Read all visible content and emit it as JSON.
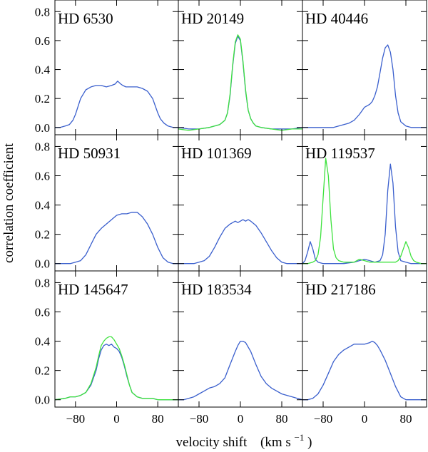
{
  "chart_data": {
    "type": "line",
    "xlabel": "velocity shift",
    "xlabel_unit_prefix": "(km s",
    "xlabel_unit_exp": "−1",
    "xlabel_unit_suffix": ")",
    "ylabel": "correlation coefficient",
    "xlim": [
      -120,
      120
    ],
    "ylim": [
      -0.05,
      0.88
    ],
    "xticks": [
      -80,
      0,
      80
    ],
    "xtick_labels": [
      "−80",
      "0",
      "80"
    ],
    "yticks": [
      0.0,
      0.2,
      0.4,
      0.6,
      0.8
    ],
    "ytick_labels": [
      "0.0",
      "0.2",
      "0.4",
      "0.6",
      "0.8"
    ],
    "series_colors": {
      "blue": "#3a5fcd",
      "green": "#3ee23e"
    },
    "panels": [
      {
        "title": "HD 6530",
        "series": [
          {
            "color": "blue",
            "x": [
              -120,
              -110,
              -100,
              -92,
              -85,
              -80,
              -70,
              -60,
              -50,
              -40,
              -30,
              -20,
              -10,
              -3,
              2,
              8,
              12,
              18,
              24,
              30,
              40,
              50,
              60,
              70,
              80,
              85,
              92,
              100,
              110,
              120
            ],
            "y": [
              0.0,
              0.0,
              0.01,
              0.02,
              0.05,
              0.09,
              0.2,
              0.26,
              0.28,
              0.29,
              0.29,
              0.28,
              0.29,
              0.3,
              0.32,
              0.3,
              0.29,
              0.28,
              0.28,
              0.28,
              0.28,
              0.27,
              0.25,
              0.2,
              0.1,
              0.06,
              0.03,
              0.01,
              0.0,
              0.0
            ]
          }
        ]
      },
      {
        "title": "HD 20149",
        "series": [
          {
            "color": "blue",
            "x": [
              -120,
              -100,
              -80,
              -60,
              -40,
              -30,
              -25,
              -20,
              -15,
              -10,
              -5,
              0,
              5,
              10,
              15,
              20,
              25,
              30,
              40,
              60,
              80,
              100,
              120
            ],
            "y": [
              0.0,
              -0.01,
              -0.01,
              0.0,
              0.02,
              0.05,
              0.1,
              0.22,
              0.42,
              0.58,
              0.63,
              0.6,
              0.45,
              0.25,
              0.12,
              0.06,
              0.03,
              0.01,
              0.0,
              -0.01,
              -0.01,
              -0.01,
              0.0
            ]
          },
          {
            "color": "green",
            "x": [
              -120,
              -100,
              -80,
              -60,
              -40,
              -30,
              -25,
              -20,
              -15,
              -10,
              -5,
              0,
              5,
              10,
              15,
              20,
              25,
              30,
              40,
              60,
              80,
              100,
              120
            ],
            "y": [
              -0.01,
              -0.02,
              -0.01,
              0.0,
              0.02,
              0.05,
              0.1,
              0.23,
              0.43,
              0.59,
              0.64,
              0.61,
              0.46,
              0.26,
              0.12,
              0.06,
              0.03,
              0.01,
              0.0,
              -0.01,
              -0.02,
              -0.01,
              -0.01
            ]
          }
        ]
      },
      {
        "title": "HD 40446",
        "series": [
          {
            "color": "blue",
            "x": [
              -120,
              -100,
              -80,
              -60,
              -40,
              -30,
              -20,
              -10,
              0,
              5,
              10,
              15,
              20,
              25,
              30,
              35,
              40,
              45,
              50,
              55,
              60,
              65,
              70,
              80,
              90,
              100,
              120
            ],
            "y": [
              0.0,
              0.0,
              0.0,
              0.0,
              0.02,
              0.03,
              0.05,
              0.09,
              0.14,
              0.15,
              0.16,
              0.18,
              0.22,
              0.28,
              0.38,
              0.48,
              0.55,
              0.57,
              0.52,
              0.4,
              0.22,
              0.1,
              0.04,
              0.01,
              0.0,
              0.0,
              0.0
            ]
          }
        ]
      },
      {
        "title": "HD 50931",
        "series": [
          {
            "color": "blue",
            "x": [
              -120,
              -100,
              -90,
              -80,
              -70,
              -60,
              -50,
              -40,
              -30,
              -20,
              -10,
              0,
              10,
              20,
              30,
              40,
              50,
              60,
              70,
              80,
              90,
              100,
              110,
              120
            ],
            "y": [
              0.0,
              0.0,
              0.0,
              0.01,
              0.02,
              0.06,
              0.13,
              0.2,
              0.24,
              0.27,
              0.3,
              0.33,
              0.34,
              0.34,
              0.35,
              0.35,
              0.32,
              0.27,
              0.2,
              0.11,
              0.04,
              0.01,
              0.0,
              0.0
            ]
          }
        ]
      },
      {
        "title": "HD 101369",
        "series": [
          {
            "color": "blue",
            "x": [
              -120,
              -100,
              -90,
              -80,
              -70,
              -60,
              -50,
              -40,
              -30,
              -20,
              -10,
              -5,
              0,
              5,
              10,
              15,
              20,
              30,
              40,
              50,
              60,
              70,
              80,
              90,
              100,
              120
            ],
            "y": [
              0.0,
              0.0,
              0.0,
              0.01,
              0.02,
              0.05,
              0.11,
              0.18,
              0.24,
              0.27,
              0.29,
              0.28,
              0.29,
              0.3,
              0.29,
              0.3,
              0.29,
              0.26,
              0.21,
              0.15,
              0.09,
              0.04,
              0.01,
              0.0,
              0.0,
              0.0
            ]
          }
        ]
      },
      {
        "title": "HD 119537",
        "series": [
          {
            "color": "blue",
            "x": [
              -120,
              -115,
              -110,
              -105,
              -100,
              -95,
              -90,
              -80,
              -60,
              -40,
              -20,
              -10,
              0,
              10,
              20,
              30,
              35,
              40,
              45,
              50,
              55,
              60,
              65,
              70,
              80,
              90,
              100,
              110,
              120
            ],
            "y": [
              0.0,
              0.02,
              0.08,
              0.15,
              0.1,
              0.03,
              0.01,
              0.0,
              0.0,
              0.0,
              0.01,
              0.02,
              0.03,
              0.02,
              0.01,
              0.02,
              0.06,
              0.2,
              0.5,
              0.68,
              0.55,
              0.25,
              0.08,
              0.02,
              0.01,
              0.0,
              0.0,
              0.0,
              0.0
            ]
          },
          {
            "color": "green",
            "x": [
              -120,
              -110,
              -100,
              -95,
              -90,
              -85,
              -80,
              -75,
              -70,
              -65,
              -60,
              -55,
              -50,
              -40,
              -20,
              -10,
              0,
              10,
              20,
              40,
              60,
              65,
              70,
              75,
              80,
              85,
              90,
              95,
              100,
              110,
              120
            ],
            "y": [
              0.0,
              0.0,
              0.01,
              0.02,
              0.06,
              0.18,
              0.45,
              0.72,
              0.6,
              0.3,
              0.1,
              0.04,
              0.02,
              0.01,
              0.01,
              0.03,
              0.02,
              0.01,
              0.01,
              0.01,
              0.01,
              0.02,
              0.05,
              0.1,
              0.15,
              0.11,
              0.05,
              0.02,
              0.01,
              0.0,
              0.0
            ]
          }
        ]
      },
      {
        "title": "HD 145647",
        "series": [
          {
            "color": "blue",
            "x": [
              -120,
              -100,
              -90,
              -80,
              -70,
              -60,
              -50,
              -40,
              -35,
              -30,
              -25,
              -20,
              -15,
              -10,
              -5,
              0,
              5,
              10,
              15,
              20,
              25,
              30,
              40,
              50,
              60,
              70,
              80,
              100,
              120
            ],
            "y": [
              0.0,
              0.01,
              0.02,
              0.02,
              0.03,
              0.05,
              0.1,
              0.2,
              0.28,
              0.34,
              0.37,
              0.38,
              0.37,
              0.38,
              0.36,
              0.35,
              0.33,
              0.29,
              0.23,
              0.16,
              0.1,
              0.05,
              0.02,
              0.01,
              0.01,
              0.01,
              0.0,
              0.0,
              0.0
            ]
          },
          {
            "color": "green",
            "x": [
              -120,
              -100,
              -90,
              -80,
              -70,
              -60,
              -50,
              -40,
              -35,
              -30,
              -25,
              -20,
              -15,
              -10,
              -5,
              0,
              5,
              10,
              15,
              20,
              25,
              30,
              40,
              50,
              60,
              70,
              80,
              100,
              120
            ],
            "y": [
              0.0,
              0.01,
              0.02,
              0.02,
              0.03,
              0.05,
              0.11,
              0.22,
              0.3,
              0.37,
              0.4,
              0.42,
              0.43,
              0.43,
              0.41,
              0.38,
              0.35,
              0.3,
              0.24,
              0.17,
              0.1,
              0.05,
              0.02,
              0.01,
              0.01,
              0.01,
              0.0,
              0.0,
              0.0
            ]
          }
        ]
      },
      {
        "title": "HD 183534",
        "series": [
          {
            "color": "blue",
            "x": [
              -120,
              -110,
              -100,
              -90,
              -80,
              -70,
              -60,
              -50,
              -40,
              -30,
              -20,
              -10,
              -5,
              0,
              5,
              10,
              20,
              30,
              40,
              50,
              60,
              70,
              80,
              90,
              100,
              110,
              120
            ],
            "y": [
              0.0,
              0.0,
              0.01,
              0.02,
              0.04,
              0.06,
              0.08,
              0.09,
              0.11,
              0.15,
              0.24,
              0.33,
              0.37,
              0.4,
              0.4,
              0.39,
              0.33,
              0.24,
              0.16,
              0.11,
              0.08,
              0.06,
              0.04,
              0.03,
              0.02,
              0.01,
              0.0
            ]
          }
        ]
      },
      {
        "title": "HD 217186",
        "series": [
          {
            "color": "blue",
            "x": [
              -120,
              -110,
              -100,
              -90,
              -80,
              -70,
              -60,
              -50,
              -40,
              -30,
              -20,
              -10,
              0,
              10,
              15,
              20,
              25,
              30,
              40,
              50,
              60,
              70,
              80,
              90,
              100,
              110,
              120
            ],
            "y": [
              0.0,
              0.0,
              0.01,
              0.04,
              0.1,
              0.18,
              0.26,
              0.31,
              0.34,
              0.36,
              0.38,
              0.38,
              0.38,
              0.39,
              0.4,
              0.39,
              0.37,
              0.34,
              0.27,
              0.18,
              0.09,
              0.02,
              0.0,
              0.0,
              0.0,
              0.0,
              0.0
            ]
          }
        ]
      }
    ]
  }
}
